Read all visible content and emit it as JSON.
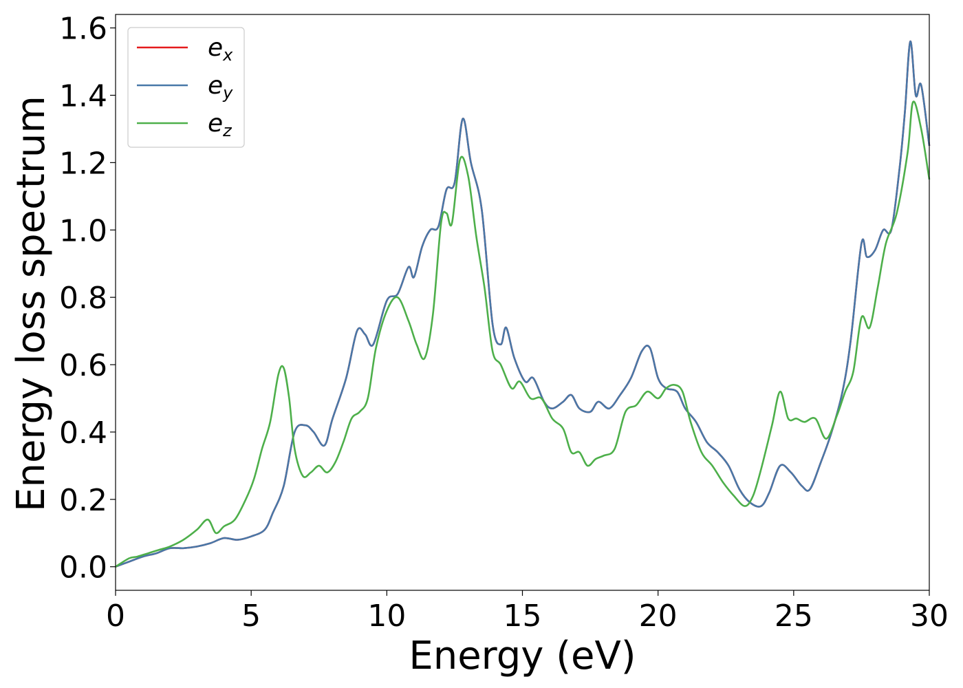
{
  "chart_data": {
    "type": "line",
    "xlabel": "Energy (eV)",
    "ylabel": "Energy loss spectrum",
    "xlim": [
      0,
      30
    ],
    "ylim": [
      -0.07,
      1.64
    ],
    "xticks": [
      0,
      5,
      10,
      15,
      20,
      25,
      30
    ],
    "yticks": [
      0.0,
      0.2,
      0.4,
      0.6,
      0.8,
      1.0,
      1.2,
      1.4,
      1.6
    ],
    "xtick_labels": [
      "0",
      "5",
      "10",
      "15",
      "20",
      "25",
      "30"
    ],
    "ytick_labels": [
      "0.0",
      "0.2",
      "0.4",
      "0.6",
      "0.8",
      "1.0",
      "1.2",
      "1.4",
      "1.6"
    ],
    "grid": false,
    "legend_position": "top-left",
    "series": [
      {
        "name": "e_x",
        "label_main": "e",
        "label_sub": "x",
        "color": "#e41a1c",
        "x": [
          0,
          0.5,
          1.0,
          1.5,
          2.0,
          2.5,
          3.0,
          3.5,
          4.0,
          4.5,
          5.0,
          5.5,
          5.8,
          6.2,
          6.6,
          7.0,
          7.3,
          7.7,
          8.0,
          8.5,
          8.9,
          9.2,
          9.5,
          10.0,
          10.4,
          10.8,
          11.0,
          11.3,
          11.6,
          11.9,
          12.2,
          12.5,
          12.8,
          13.1,
          13.5,
          13.9,
          14.2,
          14.4,
          14.7,
          15.1,
          15.4,
          15.8,
          16.1,
          16.5,
          16.8,
          17.1,
          17.5,
          17.8,
          18.2,
          18.6,
          19.0,
          19.4,
          19.7,
          20.0,
          20.3,
          20.7,
          21.0,
          21.4,
          21.8,
          22.2,
          22.6,
          23.0,
          23.4,
          23.8,
          24.1,
          24.5,
          24.9,
          25.3,
          25.6,
          26.0,
          26.4,
          26.8,
          27.1,
          27.5,
          27.7,
          28.0,
          28.3,
          28.6,
          28.9,
          29.1,
          29.3,
          29.5,
          29.7,
          30.0
        ],
        "y": [
          0.0,
          0.015,
          0.03,
          0.04,
          0.055,
          0.055,
          0.06,
          0.07,
          0.085,
          0.08,
          0.09,
          0.11,
          0.16,
          0.24,
          0.4,
          0.42,
          0.4,
          0.36,
          0.44,
          0.56,
          0.7,
          0.69,
          0.66,
          0.79,
          0.81,
          0.89,
          0.86,
          0.95,
          1.0,
          1.01,
          1.12,
          1.14,
          1.33,
          1.2,
          1.06,
          0.72,
          0.66,
          0.71,
          0.62,
          0.55,
          0.56,
          0.49,
          0.47,
          0.49,
          0.51,
          0.47,
          0.46,
          0.49,
          0.47,
          0.51,
          0.56,
          0.64,
          0.65,
          0.56,
          0.53,
          0.52,
          0.47,
          0.43,
          0.37,
          0.34,
          0.3,
          0.23,
          0.19,
          0.18,
          0.22,
          0.3,
          0.28,
          0.24,
          0.23,
          0.31,
          0.4,
          0.52,
          0.67,
          0.96,
          0.92,
          0.94,
          1.0,
          1.0,
          1.18,
          1.35,
          1.56,
          1.4,
          1.43,
          1.25
        ]
      },
      {
        "name": "e_y",
        "label_main": "e",
        "label_sub": "y",
        "color": "#4878a8",
        "x": [
          0,
          0.5,
          1.0,
          1.5,
          2.0,
          2.5,
          3.0,
          3.5,
          4.0,
          4.5,
          5.0,
          5.5,
          5.8,
          6.2,
          6.6,
          7.0,
          7.3,
          7.7,
          8.0,
          8.5,
          8.9,
          9.2,
          9.5,
          10.0,
          10.4,
          10.8,
          11.0,
          11.3,
          11.6,
          11.9,
          12.2,
          12.5,
          12.8,
          13.1,
          13.5,
          13.9,
          14.2,
          14.4,
          14.7,
          15.1,
          15.4,
          15.8,
          16.1,
          16.5,
          16.8,
          17.1,
          17.5,
          17.8,
          18.2,
          18.6,
          19.0,
          19.4,
          19.7,
          20.0,
          20.3,
          20.7,
          21.0,
          21.4,
          21.8,
          22.2,
          22.6,
          23.0,
          23.4,
          23.8,
          24.1,
          24.5,
          24.9,
          25.3,
          25.6,
          26.0,
          26.4,
          26.8,
          27.1,
          27.5,
          27.7,
          28.0,
          28.3,
          28.6,
          28.9,
          29.1,
          29.3,
          29.5,
          29.7,
          30.0
        ],
        "y": [
          0.0,
          0.015,
          0.03,
          0.04,
          0.055,
          0.055,
          0.06,
          0.07,
          0.085,
          0.08,
          0.09,
          0.11,
          0.16,
          0.24,
          0.4,
          0.42,
          0.4,
          0.36,
          0.44,
          0.56,
          0.7,
          0.69,
          0.66,
          0.79,
          0.81,
          0.89,
          0.86,
          0.95,
          1.0,
          1.01,
          1.12,
          1.14,
          1.33,
          1.2,
          1.06,
          0.72,
          0.66,
          0.71,
          0.62,
          0.55,
          0.56,
          0.49,
          0.47,
          0.49,
          0.51,
          0.47,
          0.46,
          0.49,
          0.47,
          0.51,
          0.56,
          0.64,
          0.65,
          0.56,
          0.53,
          0.52,
          0.47,
          0.43,
          0.37,
          0.34,
          0.3,
          0.23,
          0.19,
          0.18,
          0.22,
          0.3,
          0.28,
          0.24,
          0.23,
          0.31,
          0.4,
          0.52,
          0.67,
          0.96,
          0.92,
          0.94,
          1.0,
          1.0,
          1.18,
          1.35,
          1.56,
          1.4,
          1.43,
          1.25
        ]
      },
      {
        "name": "e_z",
        "label_main": "e",
        "label_sub": "z",
        "color": "#4daf4a",
        "x": [
          0,
          0.5,
          0.8,
          1.2,
          1.6,
          2.0,
          2.5,
          3.0,
          3.4,
          3.7,
          4.0,
          4.4,
          4.8,
          5.1,
          5.4,
          5.7,
          6.0,
          6.2,
          6.4,
          6.6,
          6.9,
          7.2,
          7.5,
          7.8,
          8.1,
          8.4,
          8.7,
          9.0,
          9.3,
          9.6,
          10.0,
          10.4,
          10.8,
          11.1,
          11.4,
          11.7,
          12.0,
          12.2,
          12.4,
          12.7,
          13.0,
          13.3,
          13.6,
          13.9,
          14.2,
          14.6,
          14.9,
          15.3,
          15.7,
          16.1,
          16.5,
          16.8,
          17.1,
          17.4,
          17.7,
          18.0,
          18.4,
          18.8,
          19.2,
          19.6,
          20.0,
          20.3,
          20.6,
          20.9,
          21.2,
          21.6,
          22.0,
          22.4,
          22.8,
          23.2,
          23.5,
          23.8,
          24.2,
          24.5,
          24.8,
          25.1,
          25.4,
          25.8,
          26.2,
          26.6,
          26.9,
          27.2,
          27.5,
          27.8,
          28.1,
          28.4,
          28.8,
          29.2,
          29.4,
          29.7,
          30.0
        ],
        "y": [
          0.0,
          0.025,
          0.03,
          0.04,
          0.05,
          0.06,
          0.08,
          0.11,
          0.14,
          0.1,
          0.12,
          0.14,
          0.2,
          0.26,
          0.35,
          0.43,
          0.57,
          0.59,
          0.5,
          0.35,
          0.27,
          0.28,
          0.3,
          0.28,
          0.31,
          0.37,
          0.44,
          0.46,
          0.5,
          0.65,
          0.76,
          0.8,
          0.73,
          0.66,
          0.62,
          0.75,
          1.02,
          1.05,
          1.02,
          1.21,
          1.16,
          0.98,
          0.83,
          0.64,
          0.6,
          0.53,
          0.55,
          0.5,
          0.5,
          0.44,
          0.41,
          0.34,
          0.34,
          0.3,
          0.32,
          0.33,
          0.35,
          0.46,
          0.48,
          0.52,
          0.5,
          0.53,
          0.54,
          0.52,
          0.43,
          0.34,
          0.3,
          0.25,
          0.21,
          0.18,
          0.21,
          0.29,
          0.42,
          0.52,
          0.44,
          0.44,
          0.43,
          0.44,
          0.38,
          0.45,
          0.52,
          0.58,
          0.74,
          0.71,
          0.83,
          0.96,
          1.05,
          1.23,
          1.38,
          1.3,
          1.15
        ]
      }
    ]
  }
}
